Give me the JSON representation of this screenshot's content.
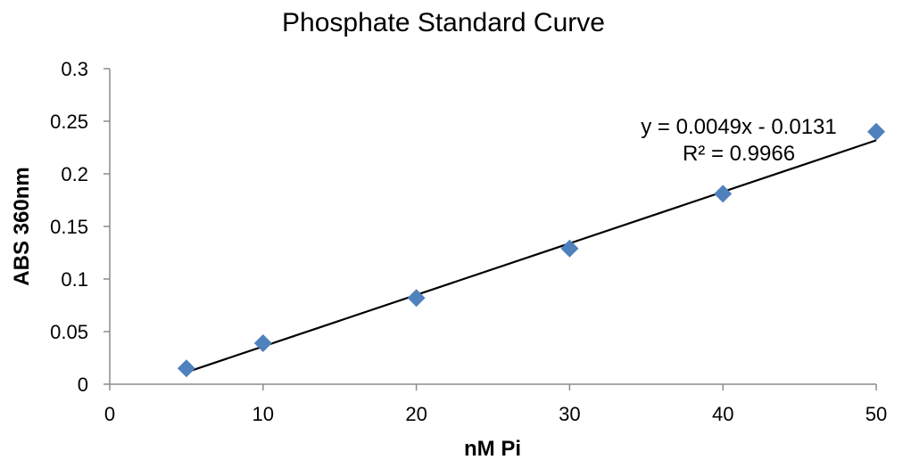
{
  "chart_data": {
    "type": "scatter",
    "title": "Phosphate Standard Curve",
    "xlabel": "nM Pi",
    "ylabel": "ABS 360nm",
    "xlim": [
      0,
      50
    ],
    "ylim": [
      0,
      0.3
    ],
    "x_ticks": [
      "0",
      "10",
      "20",
      "30",
      "40",
      "50"
    ],
    "y_ticks": [
      "0",
      "0.05",
      "0.1",
      "0.15",
      "0.2",
      "0.25",
      "0.3"
    ],
    "grid": false,
    "legend": "none",
    "marker": "diamond",
    "marker_color": "#4f81bd",
    "series": [
      {
        "points": [
          {
            "x": 5,
            "y": 0.015
          },
          {
            "x": 10,
            "y": 0.039
          },
          {
            "x": 20,
            "y": 0.082
          },
          {
            "x": 30,
            "y": 0.129
          },
          {
            "x": 40,
            "y": 0.181
          },
          {
            "x": 50,
            "y": 0.24
          }
        ]
      }
    ],
    "trendline": {
      "type": "linear",
      "slope": 0.0049,
      "intercept": -0.0131,
      "x_range": [
        5,
        50
      ],
      "color": "#000000",
      "equation_label": "y = 0.0049x - 0.0131",
      "r2_label": "R² = 0.9966"
    }
  }
}
